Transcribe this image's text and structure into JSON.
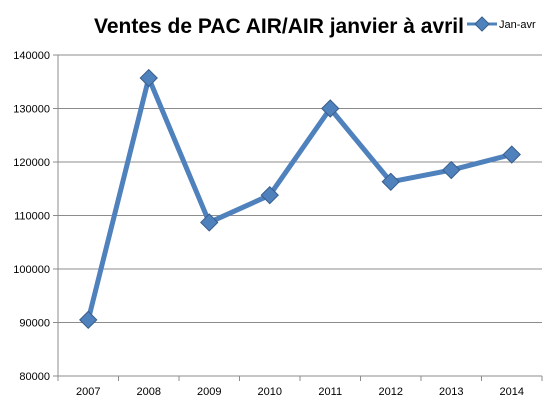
{
  "chart_data": {
    "type": "line",
    "title": "Ventes de PAC AIR/AIR janvier à avril",
    "categories": [
      "2007",
      "2008",
      "2009",
      "2010",
      "2011",
      "2012",
      "2013",
      "2014"
    ],
    "series": [
      {
        "name": "Jan-avr",
        "values": [
          90500,
          135700,
          108700,
          113800,
          130000,
          116300,
          118500,
          121400
        ]
      }
    ],
    "ylim": [
      80000,
      140000
    ],
    "yticks": [
      80000,
      90000,
      100000,
      110000,
      120000,
      130000,
      140000
    ],
    "grid": true,
    "legend": "top-right",
    "colors": {
      "line": "#4f81bd",
      "marker": "#4f81bd",
      "marker_border": "#385d8a"
    }
  }
}
